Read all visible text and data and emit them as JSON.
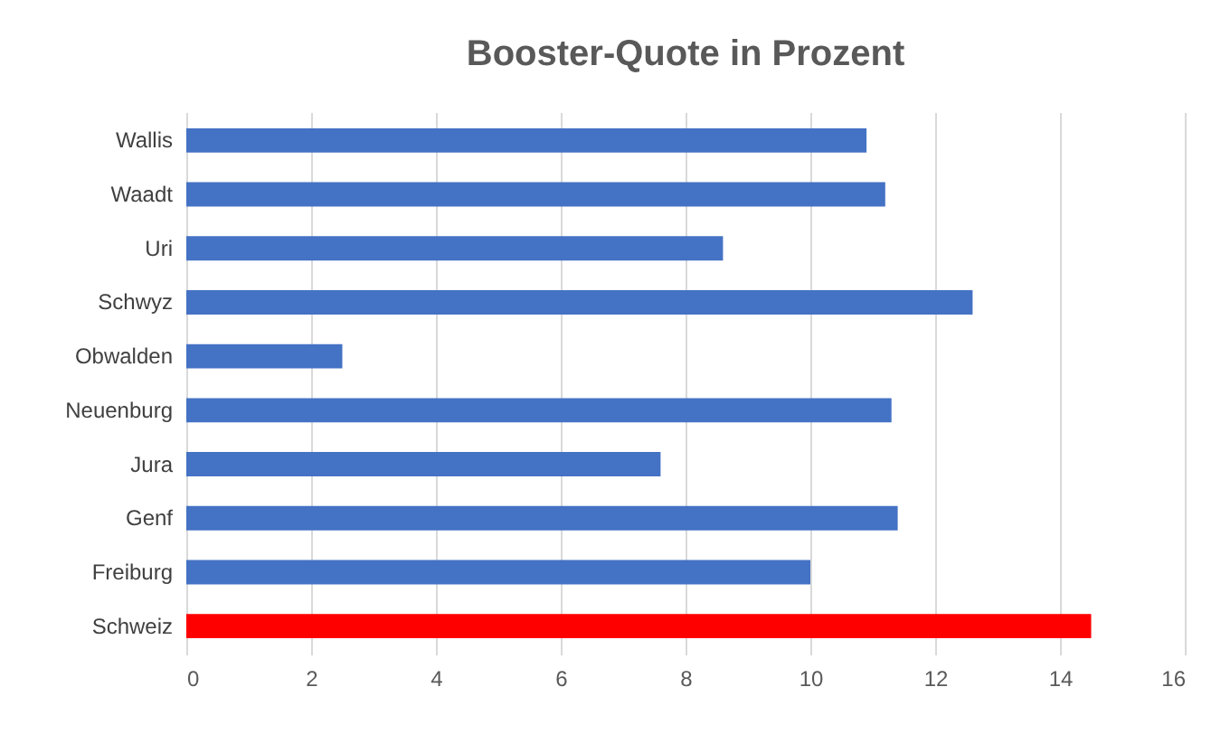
{
  "chart_data": {
    "type": "bar",
    "orientation": "horizontal",
    "title": "Booster-Quote in Prozent",
    "categories": [
      "Wallis",
      "Waadt",
      "Uri",
      "Schwyz",
      "Obwalden",
      "Neuenburg",
      "Jura",
      "Genf",
      "Freiburg",
      "Schweiz"
    ],
    "values": [
      10.9,
      11.2,
      8.6,
      12.6,
      2.5,
      11.3,
      7.6,
      11.4,
      10.0,
      14.5
    ],
    "colors": [
      "#4472c4",
      "#4472c4",
      "#4472c4",
      "#4472c4",
      "#4472c4",
      "#4472c4",
      "#4472c4",
      "#4472c4",
      "#4472c4",
      "#ff0000"
    ],
    "xlim": [
      0,
      16
    ],
    "xticks": [
      0,
      2,
      4,
      6,
      8,
      10,
      12,
      14,
      16
    ],
    "grid": "x"
  }
}
